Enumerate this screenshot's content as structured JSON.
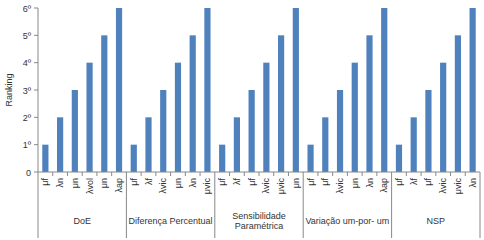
{
  "chart_data": {
    "type": "bar",
    "y_label": "Ranking",
    "groups": [
      "DoE",
      "Diferença Percentual",
      "Sensibilidade Paramétrica",
      "Variação um-por- um",
      "NSP"
    ],
    "categories": [
      "μf",
      "λn",
      "μn",
      "λvol",
      "μn",
      "λap",
      "μf",
      "λf",
      "λvic",
      "μn",
      "λn",
      "μvic",
      "μf",
      "λf",
      "μf",
      "λvic",
      "μvic",
      "μn",
      "μf",
      "μf",
      "λvic",
      "μn",
      "λn",
      "λap",
      "μf",
      "λf",
      "μf",
      "λvic",
      "μvic",
      "λn"
    ],
    "values": [
      1,
      2,
      3,
      4,
      5,
      6,
      1,
      2,
      3,
      4,
      5,
      6,
      1,
      2,
      3,
      4,
      5,
      6,
      1,
      2,
      3,
      4,
      5,
      6,
      1,
      2,
      3,
      4,
      5,
      6
    ],
    "color": "#4f81bd",
    "ylim": [
      0,
      6
    ],
    "yticks": [
      0,
      {
        "value": 1,
        "label": "1º"
      },
      {
        "value": 2,
        "label": "2º"
      },
      {
        "value": 3,
        "label": "3º"
      },
      {
        "value": 4,
        "label": "4º"
      },
      {
        "value": 5,
        "label": "5º"
      },
      {
        "value": 6,
        "label": "6º"
      }
    ],
    "grid": false
  }
}
